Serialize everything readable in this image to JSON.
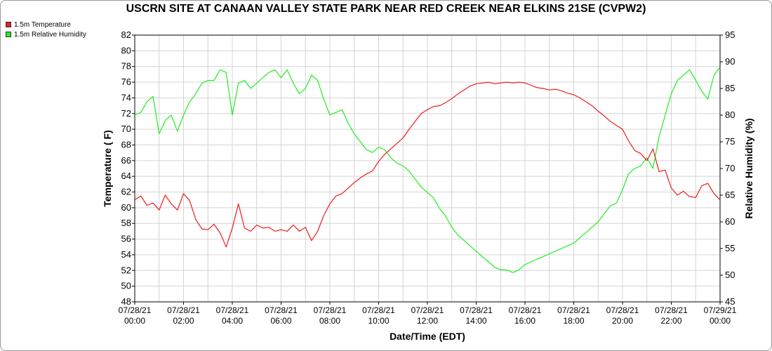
{
  "chart_data": {
    "type": "line",
    "title": "USCRN SITE AT CANAAN VALLEY STATE PARK NEAR RED CREEK NEAR ELKINS 21SE (CVPW2)",
    "xlabel": "Date/Time (EDT)",
    "ylabel_left": "Temperature ( F)",
    "ylabel_right": "Relative Humidity (%)",
    "ylim_left": [
      48,
      82
    ],
    "ylim_right": [
      45,
      95
    ],
    "xlim": [
      0,
      24
    ],
    "x_tick_labels": [
      [
        "07/28/21",
        "00:00"
      ],
      [
        "07/28/21",
        "02:00"
      ],
      [
        "07/28/21",
        "04:00"
      ],
      [
        "07/28/21",
        "06:00"
      ],
      [
        "07/28/21",
        "08:00"
      ],
      [
        "07/28/21",
        "10:00"
      ],
      [
        "07/28/21",
        "12:00"
      ],
      [
        "07/28/21",
        "14:00"
      ],
      [
        "07/28/21",
        "16:00"
      ],
      [
        "07/28/21",
        "18:00"
      ],
      [
        "07/28/21",
        "20:00"
      ],
      [
        "07/28/21",
        "22:00"
      ],
      [
        "07/29/21",
        "00:00"
      ]
    ],
    "y_left_ticks": [
      48,
      50,
      52,
      54,
      56,
      58,
      60,
      62,
      64,
      66,
      68,
      70,
      72,
      74,
      76,
      78,
      80,
      82
    ],
    "y_right_ticks": [
      45,
      50,
      55,
      60,
      65,
      70,
      75,
      80,
      85,
      90,
      95
    ],
    "grid": true,
    "legend_position": "top-left",
    "series": [
      {
        "name": "1.5m Temperature",
        "color": "#ee1c1c",
        "axis": "left",
        "points": [
          [
            0,
            61.0
          ],
          [
            0.25,
            61.5
          ],
          [
            0.5,
            60.3
          ],
          [
            0.75,
            60.6
          ],
          [
            1.0,
            59.7
          ],
          [
            1.25,
            61.6
          ],
          [
            1.5,
            60.5
          ],
          [
            1.75,
            59.7
          ],
          [
            2.0,
            61.8
          ],
          [
            2.25,
            60.9
          ],
          [
            2.5,
            58.5
          ],
          [
            2.75,
            57.3
          ],
          [
            3.0,
            57.2
          ],
          [
            3.25,
            57.9
          ],
          [
            3.5,
            56.8
          ],
          [
            3.75,
            55.0
          ],
          [
            4.0,
            57.4
          ],
          [
            4.25,
            60.5
          ],
          [
            4.5,
            57.4
          ],
          [
            4.75,
            57.0
          ],
          [
            5.0,
            57.8
          ],
          [
            5.25,
            57.4
          ],
          [
            5.5,
            57.5
          ],
          [
            5.75,
            57.0
          ],
          [
            6.0,
            57.2
          ],
          [
            6.25,
            57.0
          ],
          [
            6.5,
            57.8
          ],
          [
            6.75,
            57.0
          ],
          [
            7.0,
            57.5
          ],
          [
            7.25,
            55.8
          ],
          [
            7.5,
            57.0
          ],
          [
            7.75,
            59.0
          ],
          [
            8.0,
            60.5
          ],
          [
            8.25,
            61.5
          ],
          [
            8.5,
            61.8
          ],
          [
            8.75,
            62.5
          ],
          [
            9.0,
            63.2
          ],
          [
            9.25,
            63.8
          ],
          [
            9.5,
            64.3
          ],
          [
            9.75,
            64.7
          ],
          [
            10.0,
            65.9
          ],
          [
            10.25,
            66.8
          ],
          [
            10.5,
            67.5
          ],
          [
            10.75,
            68.2
          ],
          [
            11.0,
            68.9
          ],
          [
            11.25,
            70.0
          ],
          [
            11.5,
            71.0
          ],
          [
            11.75,
            72.0
          ],
          [
            12.0,
            72.5
          ],
          [
            12.25,
            72.9
          ],
          [
            12.5,
            73.0
          ],
          [
            12.75,
            73.4
          ],
          [
            13.0,
            73.9
          ],
          [
            13.25,
            74.5
          ],
          [
            13.5,
            75.0
          ],
          [
            13.75,
            75.5
          ],
          [
            14.0,
            75.8
          ],
          [
            14.25,
            75.9
          ],
          [
            14.5,
            76.0
          ],
          [
            14.75,
            75.8
          ],
          [
            15.0,
            75.9
          ],
          [
            15.25,
            76.0
          ],
          [
            15.5,
            75.9
          ],
          [
            15.75,
            76.0
          ],
          [
            16.0,
            75.9
          ],
          [
            16.25,
            75.6
          ],
          [
            16.5,
            75.3
          ],
          [
            16.75,
            75.2
          ],
          [
            17.0,
            75.0
          ],
          [
            17.25,
            75.1
          ],
          [
            17.5,
            74.9
          ],
          [
            17.75,
            74.6
          ],
          [
            18.0,
            74.4
          ],
          [
            18.25,
            74.0
          ],
          [
            18.5,
            73.5
          ],
          [
            18.75,
            73.0
          ],
          [
            19.0,
            72.3
          ],
          [
            19.25,
            71.7
          ],
          [
            19.5,
            71.0
          ],
          [
            19.75,
            70.5
          ],
          [
            20.0,
            70.0
          ],
          [
            20.25,
            68.5
          ],
          [
            20.5,
            67.3
          ],
          [
            20.75,
            66.9
          ],
          [
            21.0,
            66.0
          ],
          [
            21.25,
            67.5
          ],
          [
            21.5,
            64.6
          ],
          [
            21.75,
            64.8
          ],
          [
            22.0,
            62.5
          ],
          [
            22.25,
            61.6
          ],
          [
            22.5,
            62.1
          ],
          [
            22.75,
            61.4
          ],
          [
            23.0,
            61.3
          ],
          [
            23.25,
            62.8
          ],
          [
            23.5,
            63.1
          ],
          [
            23.75,
            61.8
          ],
          [
            24.0,
            61.0
          ]
        ]
      },
      {
        "name": "1.5m Relative Humidity",
        "color": "#22ee22",
        "axis": "right",
        "points": [
          [
            0,
            80.0
          ],
          [
            0.25,
            80.5
          ],
          [
            0.5,
            82.5
          ],
          [
            0.75,
            83.5
          ],
          [
            1.0,
            76.5
          ],
          [
            1.25,
            79.0
          ],
          [
            1.5,
            80.0
          ],
          [
            1.75,
            77.0
          ],
          [
            2.0,
            80.0
          ],
          [
            2.25,
            82.5
          ],
          [
            2.5,
            84.0
          ],
          [
            2.75,
            86.0
          ],
          [
            3.0,
            86.5
          ],
          [
            3.25,
            86.5
          ],
          [
            3.5,
            88.5
          ],
          [
            3.75,
            88.0
          ],
          [
            4.0,
            80.0
          ],
          [
            4.25,
            86.0
          ],
          [
            4.5,
            86.5
          ],
          [
            4.75,
            85.0
          ],
          [
            5.0,
            86.0
          ],
          [
            5.25,
            87.0
          ],
          [
            5.5,
            88.0
          ],
          [
            5.75,
            88.5
          ],
          [
            6.0,
            87.0
          ],
          [
            6.25,
            88.5
          ],
          [
            6.5,
            86.0
          ],
          [
            6.75,
            84.0
          ],
          [
            7.0,
            85.0
          ],
          [
            7.25,
            87.5
          ],
          [
            7.5,
            86.5
          ],
          [
            7.75,
            83.0
          ],
          [
            8.0,
            80.0
          ],
          [
            8.25,
            80.5
          ],
          [
            8.5,
            81.0
          ],
          [
            8.75,
            78.5
          ],
          [
            9.0,
            76.5
          ],
          [
            9.25,
            75.0
          ],
          [
            9.5,
            73.5
          ],
          [
            9.75,
            73.0
          ],
          [
            10.0,
            74.0
          ],
          [
            10.25,
            73.5
          ],
          [
            10.5,
            72.0
          ],
          [
            10.75,
            71.0
          ],
          [
            11.0,
            70.5
          ],
          [
            11.25,
            69.5
          ],
          [
            11.5,
            68.0
          ],
          [
            11.75,
            66.5
          ],
          [
            12.0,
            65.5
          ],
          [
            12.25,
            64.5
          ],
          [
            12.5,
            62.5
          ],
          [
            12.75,
            61.0
          ],
          [
            13.0,
            59.0
          ],
          [
            13.25,
            57.5
          ],
          [
            13.5,
            56.5
          ],
          [
            13.75,
            55.5
          ],
          [
            14.0,
            54.5
          ],
          [
            14.25,
            53.5
          ],
          [
            14.5,
            52.5
          ],
          [
            14.75,
            51.5
          ],
          [
            15.0,
            51.0
          ],
          [
            15.25,
            51.0
          ],
          [
            15.5,
            50.5
          ],
          [
            15.75,
            51.0
          ],
          [
            16.0,
            52.0
          ],
          [
            16.25,
            52.5
          ],
          [
            16.5,
            53.0
          ],
          [
            16.75,
            53.5
          ],
          [
            17.0,
            54.0
          ],
          [
            17.25,
            54.5
          ],
          [
            17.5,
            55.0
          ],
          [
            17.75,
            55.5
          ],
          [
            18.0,
            56.0
          ],
          [
            18.25,
            57.0
          ],
          [
            18.5,
            58.0
          ],
          [
            18.75,
            59.0
          ],
          [
            19.0,
            60.0
          ],
          [
            19.25,
            61.5
          ],
          [
            19.5,
            63.0
          ],
          [
            19.75,
            63.5
          ],
          [
            20.0,
            66.0
          ],
          [
            20.25,
            69.0
          ],
          [
            20.5,
            70.0
          ],
          [
            20.75,
            70.5
          ],
          [
            21.0,
            72.0
          ],
          [
            21.25,
            70.0
          ],
          [
            21.5,
            76.0
          ],
          [
            21.75,
            80.0
          ],
          [
            22.0,
            84.0
          ],
          [
            22.25,
            86.5
          ],
          [
            22.5,
            87.5
          ],
          [
            22.75,
            88.5
          ],
          [
            23.0,
            86.5
          ],
          [
            23.25,
            84.5
          ],
          [
            23.5,
            83.0
          ],
          [
            23.75,
            87.5
          ],
          [
            24.0,
            89.0
          ]
        ]
      }
    ]
  }
}
